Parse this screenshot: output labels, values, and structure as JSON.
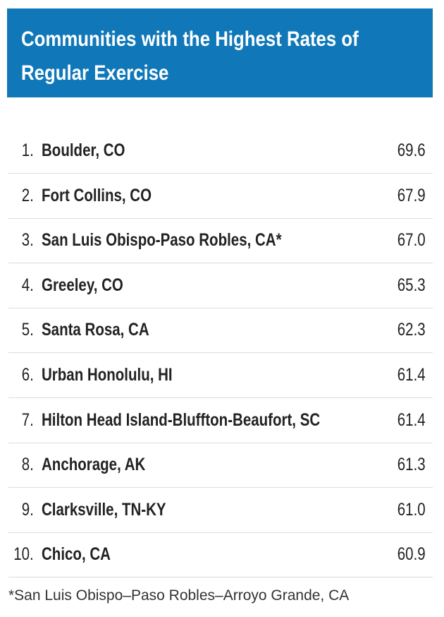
{
  "header": {
    "title": "Communities with the Highest Rates of Regular Exercise"
  },
  "table": {
    "rows": [
      [
        "1.",
        "Boulder, CO",
        "69.6"
      ],
      [
        "2.",
        "Fort Collins, CO",
        "67.9"
      ],
      [
        "3.",
        "San Luis Obispo-Paso Robles, CA*",
        "67.0"
      ],
      [
        "4.",
        "Greeley, CO",
        "65.3"
      ],
      [
        "5.",
        "Santa Rosa, CA",
        "62.3"
      ],
      [
        "6.",
        "Urban Honolulu, HI",
        "61.4"
      ],
      [
        "7.",
        "Hilton Head Island-Bluffton-Beaufort, SC",
        "61.4"
      ],
      [
        "8.",
        "Anchorage, AK",
        "61.3"
      ],
      [
        "9.",
        "Clarksville, TN-KY",
        "61.0"
      ],
      [
        "10.",
        "Chico, CA",
        "60.9"
      ]
    ]
  },
  "footnote": "*San Luis Obispo–Paso Robles–Arroyo Grande, CA"
}
